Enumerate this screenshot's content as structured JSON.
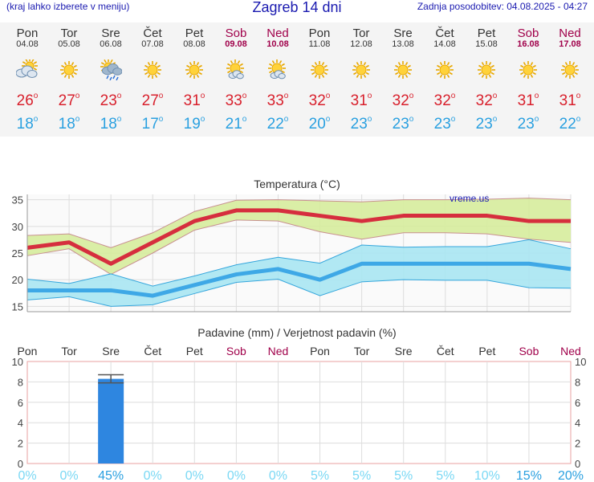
{
  "header": {
    "menu_hint": "(kraj lahko izberete v meniju)",
    "title": "Zagreb 14 dni",
    "updated": "Zadnja posodobitev: 04.08.2025 - 04:27"
  },
  "days": [
    {
      "name": "Pon",
      "date": "04.08",
      "weekend": false,
      "icon": "partly-cloudy-icon",
      "tmax": "26",
      "tmin": "18"
    },
    {
      "name": "Tor",
      "date": "05.08",
      "weekend": false,
      "icon": "sun-icon",
      "tmax": "27",
      "tmin": "18"
    },
    {
      "name": "Sre",
      "date": "06.08",
      "weekend": false,
      "icon": "sun-cloud-rain-icon",
      "tmax": "23",
      "tmin": "18"
    },
    {
      "name": "Čet",
      "date": "07.08",
      "weekend": false,
      "icon": "sun-icon",
      "tmax": "27",
      "tmin": "17"
    },
    {
      "name": "Pet",
      "date": "08.08",
      "weekend": false,
      "icon": "sun-icon",
      "tmax": "31",
      "tmin": "19"
    },
    {
      "name": "Sob",
      "date": "09.08",
      "weekend": true,
      "icon": "sun-small-cloud-icon",
      "tmax": "33",
      "tmin": "21"
    },
    {
      "name": "Ned",
      "date": "10.08",
      "weekend": true,
      "icon": "sun-small-cloud-icon",
      "tmax": "33",
      "tmin": "22"
    },
    {
      "name": "Pon",
      "date": "11.08",
      "weekend": false,
      "icon": "sun-icon",
      "tmax": "32",
      "tmin": "20"
    },
    {
      "name": "Tor",
      "date": "12.08",
      "weekend": false,
      "icon": "sun-icon",
      "tmax": "31",
      "tmin": "23"
    },
    {
      "name": "Sre",
      "date": "13.08",
      "weekend": false,
      "icon": "sun-icon",
      "tmax": "32",
      "tmin": "23"
    },
    {
      "name": "Čet",
      "date": "14.08",
      "weekend": false,
      "icon": "sun-icon",
      "tmax": "32",
      "tmin": "23"
    },
    {
      "name": "Pet",
      "date": "15.08",
      "weekend": false,
      "icon": "sun-icon",
      "tmax": "32",
      "tmin": "23"
    },
    {
      "name": "Sob",
      "date": "16.08",
      "weekend": true,
      "icon": "sun-icon",
      "tmax": "31",
      "tmin": "23"
    },
    {
      "name": "Ned",
      "date": "17.08",
      "weekend": true,
      "icon": "sun-icon",
      "tmax": "31",
      "tmin": "22"
    }
  ],
  "colors": {
    "max_line": "#d62e3e",
    "max_band": "#d6ec9c",
    "min_line": "#3ea8e6",
    "min_band": "#a8e6f2",
    "bar": "#2e86e0",
    "weekend": "#a0004a",
    "prob": "#7ad8f4"
  },
  "chart_data": [
    {
      "type": "line",
      "title": "Temperatura (°C)",
      "watermark": "vreme.us",
      "ylim": [
        14,
        36
      ],
      "yticks": [
        15,
        20,
        25,
        30,
        35
      ],
      "series": [
        {
          "values": [
            26,
            27,
            23,
            27,
            31,
            33,
            33,
            32,
            31,
            32,
            32,
            32,
            31,
            31
          ],
          "band_low": [
            24.5,
            25.8,
            21,
            25,
            29.3,
            31.2,
            31,
            29,
            27.6,
            28.8,
            28.8,
            28.6,
            27.6,
            27
          ],
          "band_high": [
            28.3,
            28.6,
            26,
            28.8,
            32.8,
            34.9,
            35,
            34.8,
            34.6,
            35,
            35,
            35.1,
            35.3,
            35
          ]
        },
        {
          "values": [
            18,
            18,
            18,
            17,
            19,
            21,
            22,
            20,
            23,
            23,
            23,
            23,
            23,
            22
          ],
          "band_low": [
            16.2,
            16.8,
            15,
            15.3,
            17.4,
            19.5,
            20.1,
            17,
            19.6,
            20,
            19.9,
            19.9,
            18.5,
            18.4
          ],
          "band_high": [
            20.1,
            19.3,
            21.1,
            18.8,
            20.7,
            22.8,
            24.2,
            23.1,
            26.5,
            26.1,
            26.2,
            26.2,
            27.5,
            25.8
          ]
        }
      ]
    },
    {
      "type": "bar",
      "title": "Padavine (mm) / Verjetnost padavin (%)",
      "categories": [
        "Pon",
        "Tor",
        "Sre",
        "Čet",
        "Pet",
        "Sob",
        "Ned",
        "Pon",
        "Tor",
        "Sre",
        "Čet",
        "Pet",
        "Sob",
        "Ned"
      ],
      "values": [
        0,
        0,
        8.3,
        0,
        0,
        0,
        0,
        0,
        0,
        0,
        0,
        0,
        0,
        0
      ],
      "error_high": [
        0,
        0,
        8.7,
        0,
        0,
        0,
        0,
        0,
        0,
        0,
        0,
        0,
        0,
        0
      ],
      "error_low": [
        0,
        0,
        7.9,
        0,
        0,
        0,
        0,
        0,
        0,
        0,
        0,
        0,
        0,
        0
      ],
      "probability": [
        "0%",
        "0%",
        "45%",
        "0%",
        "0%",
        "0%",
        "0%",
        "5%",
        "5%",
        "5%",
        "5%",
        "10%",
        "15%",
        "20%"
      ],
      "ylim": [
        0,
        10
      ],
      "yticks": [
        0,
        2,
        4,
        6,
        8,
        10
      ]
    }
  ]
}
